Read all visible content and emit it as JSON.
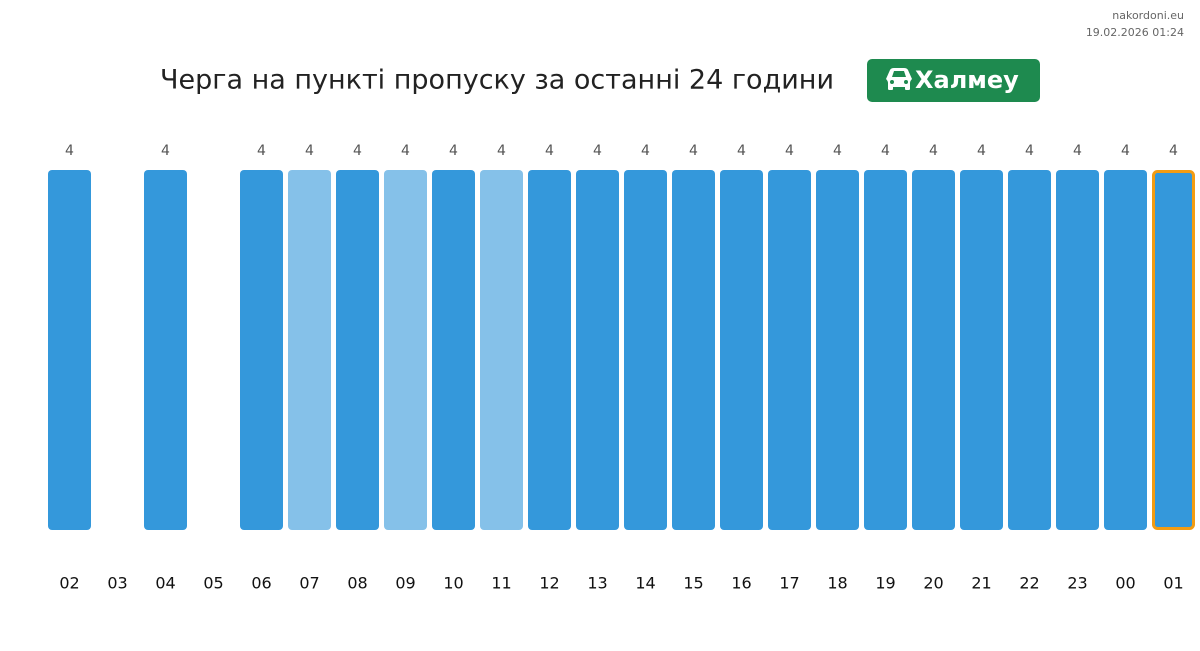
{
  "chart_data": {
    "type": "bar",
    "title": "Черга на пункті пропуску за останні 24 години",
    "checkpoint": "Халмеу",
    "site": "nakordoni.eu",
    "timestamp": "19.02.2026 01:24",
    "categories": [
      "02",
      "03",
      "04",
      "05",
      "06",
      "07",
      "08",
      "09",
      "10",
      "11",
      "12",
      "13",
      "14",
      "15",
      "16",
      "17",
      "18",
      "19",
      "20",
      "21",
      "22",
      "23",
      "00",
      "01"
    ],
    "values": [
      4,
      null,
      4,
      null,
      4,
      4,
      4,
      4,
      4,
      4,
      4,
      4,
      4,
      4,
      4,
      4,
      4,
      4,
      4,
      4,
      4,
      4,
      4,
      4
    ],
    "colors": [
      "#3498db",
      "#3498db",
      "#3498db",
      "#3498db",
      "#3498db",
      "#85c1e9",
      "#3498db",
      "#85c1e9",
      "#3498db",
      "#85c1e9",
      "#3498db",
      "#3498db",
      "#3498db",
      "#3498db",
      "#3498db",
      "#3498db",
      "#3498db",
      "#3498db",
      "#3498db",
      "#3498db",
      "#3498db",
      "#3498db",
      "#3498db",
      "#3498db"
    ],
    "highlight": "01",
    "highlight_color": "#f39c12",
    "badge_color": "#1e8a4f"
  }
}
